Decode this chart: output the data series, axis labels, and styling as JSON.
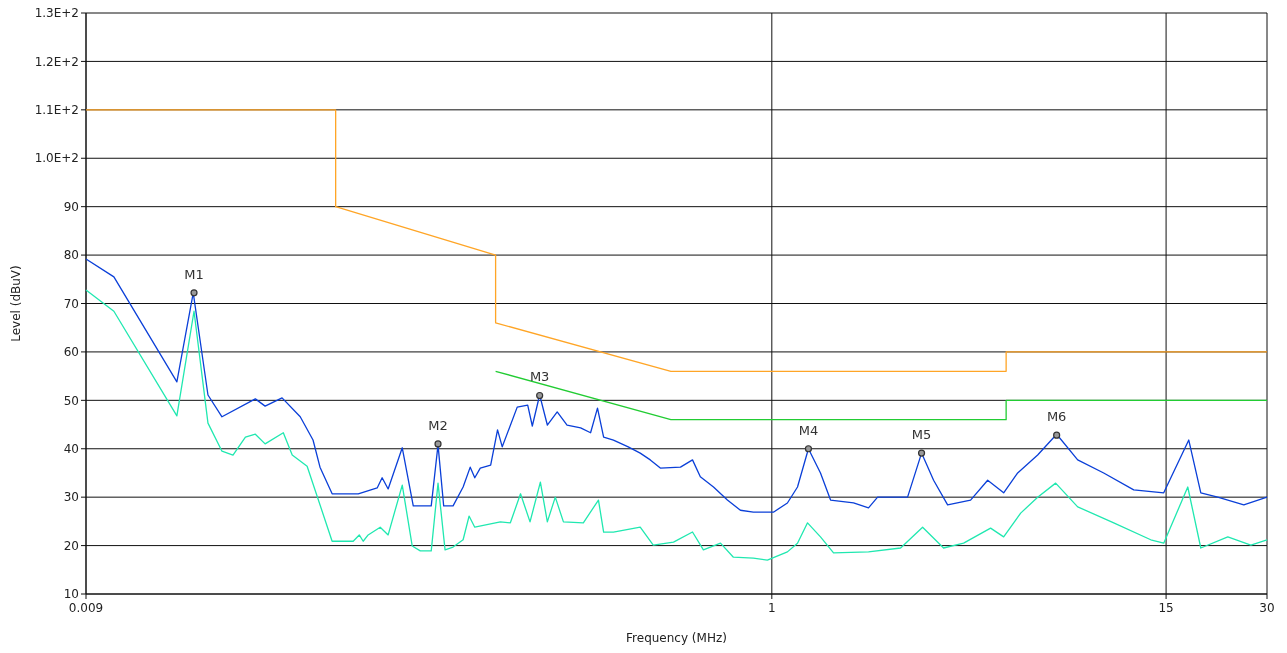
{
  "chart_data": {
    "type": "line",
    "xlabel": "Frequency (MHz)",
    "ylabel": "Level (dBuV)",
    "log": "x",
    "grid": true,
    "line_style": "solid",
    "xlim": [
      0.009,
      30
    ],
    "xticks": [
      0.009,
      1,
      15,
      30
    ],
    "ylim": [
      10,
      130
    ],
    "yticks": [
      10,
      20,
      30,
      40,
      50,
      60,
      70,
      80,
      90,
      {
        "value": 100,
        "label": "1.0E+2"
      },
      {
        "value": 110,
        "label": "1.1E+2"
      },
      {
        "value": 120,
        "label": "1.2E+2"
      },
      {
        "value": 130,
        "label": "1.3E+2"
      }
    ],
    "series": [
      {
        "color": "#ffa526",
        "x": [
          0.009,
          0.05,
          0.05,
          0.15,
          0.15,
          0.5,
          5,
          5,
          30
        ],
        "values": [
          110,
          110,
          90,
          80,
          66,
          56,
          56,
          60,
          60
        ]
      },
      {
        "color": "#22cc33",
        "x": [
          0.15,
          0.5,
          5,
          5,
          30
        ],
        "values": [
          56,
          46,
          46,
          50,
          50
        ]
      },
      {
        "color": "#0a3fd8",
        "x": [
          0.009,
          0.0109,
          0.0168,
          0.0188,
          0.0208,
          0.0229,
          0.0288,
          0.0308,
          0.0346,
          0.0392,
          0.0428,
          0.0449,
          0.0488,
          0.0584,
          0.0665,
          0.0688,
          0.0717,
          0.079,
          0.0852,
          0.0964,
          0.101,
          0.105,
          0.112,
          0.12,
          0.126,
          0.13,
          0.135,
          0.145,
          0.152,
          0.157,
          0.174,
          0.187,
          0.193,
          0.203,
          0.214,
          0.229,
          0.245,
          0.269,
          0.288,
          0.302,
          0.315,
          0.337,
          0.373,
          0.405,
          0.434,
          0.465,
          0.534,
          0.58,
          0.612,
          0.67,
          0.737,
          0.806,
          0.881,
          1.011,
          1.113,
          1.193,
          1.286,
          1.397,
          1.497,
          1.753,
          1.943,
          2.068,
          2.541,
          2.797,
          3.038,
          3.345,
          3.917,
          4.404,
          4.916,
          5.412,
          6.209,
          7.074,
          8.173,
          9.772,
          12.01,
          14.76,
          17.53,
          19.04,
          21.39,
          25.58,
          30
        ],
        "values": [
          79.2,
          75.5,
          53.8,
          72.2,
          51.1,
          46.6,
          50.3,
          48.8,
          50.5,
          46.6,
          41.8,
          36.2,
          30.7,
          30.7,
          31.9,
          34,
          31.7,
          40.2,
          28.2,
          28.2,
          40.8,
          28.2,
          28.2,
          32.1,
          36.2,
          34,
          36,
          36.6,
          43.9,
          40.4,
          48.6,
          49,
          44.7,
          51.1,
          44.9,
          47.6,
          44.9,
          44.3,
          43.3,
          48.4,
          42.4,
          41.8,
          40.4,
          39.1,
          37.7,
          36,
          36.2,
          37.7,
          34.2,
          32.1,
          29.4,
          27.3,
          26.9,
          26.9,
          28.8,
          32.1,
          40,
          35,
          29.4,
          28.8,
          27.8,
          30,
          30,
          39.1,
          33.5,
          28.4,
          29.4,
          33.5,
          30.9,
          35,
          38.7,
          43,
          37.7,
          35,
          31.5,
          30.9,
          41.8,
          30.9,
          30,
          28.4,
          30
        ]
      },
      {
        "color": "#20e8b0",
        "x": [
          0.009,
          0.0109,
          0.0168,
          0.0189,
          0.0208,
          0.0229,
          0.0247,
          0.0269,
          0.0288,
          0.0308,
          0.0349,
          0.0371,
          0.0411,
          0.0488,
          0.0564,
          0.0588,
          0.0604,
          0.0625,
          0.0679,
          0.0717,
          0.079,
          0.0846,
          0.0894,
          0.0964,
          0.101,
          0.106,
          0.112,
          0.12,
          0.125,
          0.13,
          0.155,
          0.166,
          0.178,
          0.19,
          0.204,
          0.214,
          0.226,
          0.239,
          0.274,
          0.304,
          0.315,
          0.337,
          0.405,
          0.443,
          0.509,
          0.58,
          0.625,
          0.703,
          0.768,
          0.881,
          0.97,
          1.113,
          1.193,
          1.278,
          1.397,
          1.528,
          1.943,
          2.422,
          2.817,
          3.254,
          3.734,
          4.494,
          4.916,
          5.525,
          6.209,
          7.025,
          8.173,
          10.47,
          13.5,
          14.76,
          17.41,
          19.04,
          22.92,
          26.85,
          30
        ],
        "values": [
          72.8,
          68.4,
          46.8,
          68.4,
          45.3,
          39.5,
          38.7,
          42.4,
          43,
          41,
          43.3,
          38.7,
          36.4,
          20.9,
          20.9,
          22.2,
          20.9,
          22.2,
          23.8,
          22.2,
          32.5,
          19.9,
          18.9,
          18.9,
          32.9,
          19.1,
          19.7,
          21.2,
          26.1,
          23.8,
          24.9,
          24.7,
          30.7,
          24.9,
          33.1,
          24.9,
          30,
          24.9,
          24.7,
          29.4,
          22.8,
          22.8,
          23.8,
          20.1,
          20.7,
          22.8,
          19.1,
          20.5,
          17.6,
          17.4,
          17,
          18.7,
          20.5,
          24.7,
          21.8,
          18.5,
          18.7,
          19.5,
          23.8,
          19.5,
          20.5,
          23.6,
          21.8,
          26.7,
          30,
          32.9,
          28,
          24.7,
          21.2,
          20.5,
          32.1,
          19.5,
          21.8,
          20.1,
          21.2
        ]
      },
      {
        "type": "scatter",
        "color": "#333333",
        "marker": "circle",
        "x": [
          0.0189,
          0.101,
          0.203,
          1.286,
          2.797,
          7.074
        ],
        "values": [
          72.2,
          41,
          51,
          40,
          39.1,
          42.8
        ]
      }
    ],
    "annotations": [
      {
        "text": "M1",
        "x": 0.0189,
        "y": 72.2
      },
      {
        "text": "M2",
        "x": 0.101,
        "y": 41
      },
      {
        "text": "M3",
        "x": 0.203,
        "y": 51
      },
      {
        "text": "M4",
        "x": 1.286,
        "y": 40
      },
      {
        "text": "M5",
        "x": 2.797,
        "y": 39.1
      },
      {
        "text": "M6",
        "x": 7.074,
        "y": 42.8
      }
    ]
  }
}
